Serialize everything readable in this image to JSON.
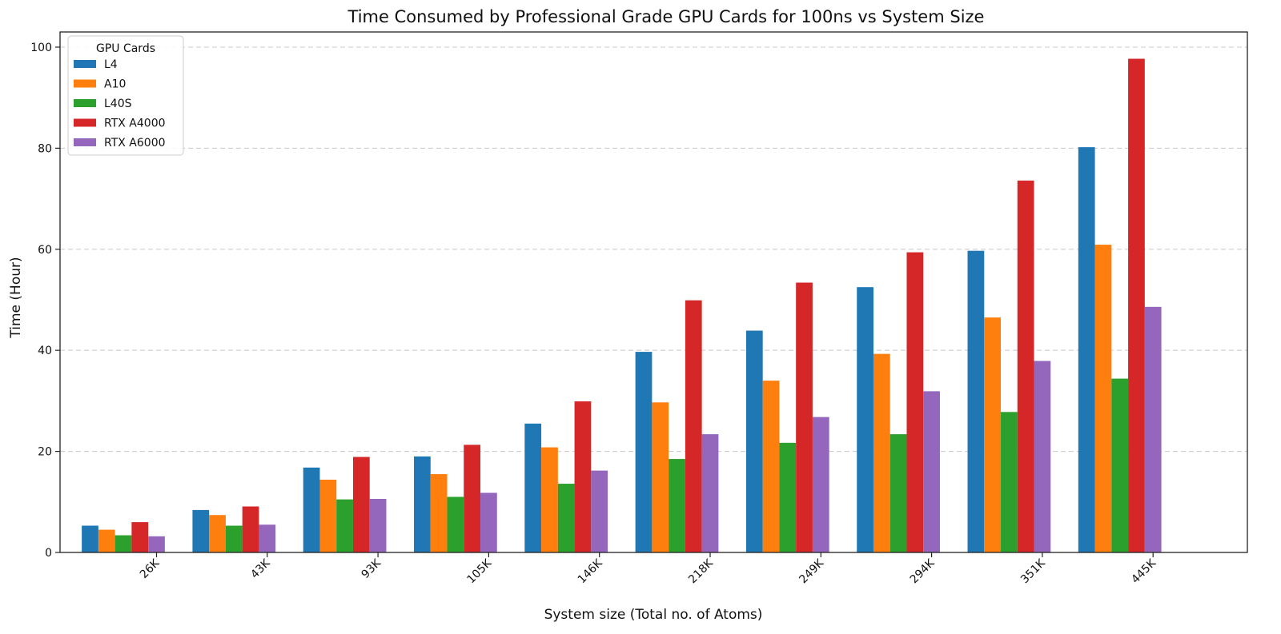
{
  "chart_data": {
    "type": "bar",
    "title": "Time Consumed by Professional Grade GPU Cards for 100ns vs System Size",
    "xlabel": "System size (Total no. of Atoms)",
    "ylabel": "Time (Hour)",
    "ylim": [
      0,
      103
    ],
    "yticks": [
      0,
      20,
      40,
      60,
      80,
      100
    ],
    "grid": "horizontal dashed",
    "legend_title": "GPU Cards",
    "legend_position": "top-left",
    "categories": [
      "26K",
      "43K",
      "93K",
      "105K",
      "146K",
      "218K",
      "249K",
      "294K",
      "351K",
      "445K"
    ],
    "series": [
      {
        "name": "L4",
        "color": "#1f77b4",
        "values": [
          5.3,
          8.4,
          16.8,
          19.0,
          25.5,
          39.7,
          43.9,
          52.5,
          59.7,
          80.2
        ]
      },
      {
        "name": "A10",
        "color": "#ff7f0e",
        "values": [
          4.5,
          7.4,
          14.4,
          15.5,
          20.8,
          29.7,
          34.0,
          39.3,
          46.5,
          60.9
        ]
      },
      {
        "name": "L40S",
        "color": "#2ca02c",
        "values": [
          3.4,
          5.3,
          10.5,
          11.0,
          13.6,
          18.5,
          21.7,
          23.4,
          27.8,
          34.4
        ]
      },
      {
        "name": "RTX A4000",
        "color": "#d62728",
        "values": [
          6.0,
          9.1,
          18.9,
          21.3,
          29.9,
          49.9,
          53.4,
          59.4,
          73.6,
          97.7
        ]
      },
      {
        "name": "RTX A6000",
        "color": "#9467bd",
        "values": [
          3.2,
          5.5,
          10.6,
          11.8,
          16.2,
          23.4,
          26.8,
          31.9,
          37.9,
          48.6
        ]
      }
    ]
  }
}
